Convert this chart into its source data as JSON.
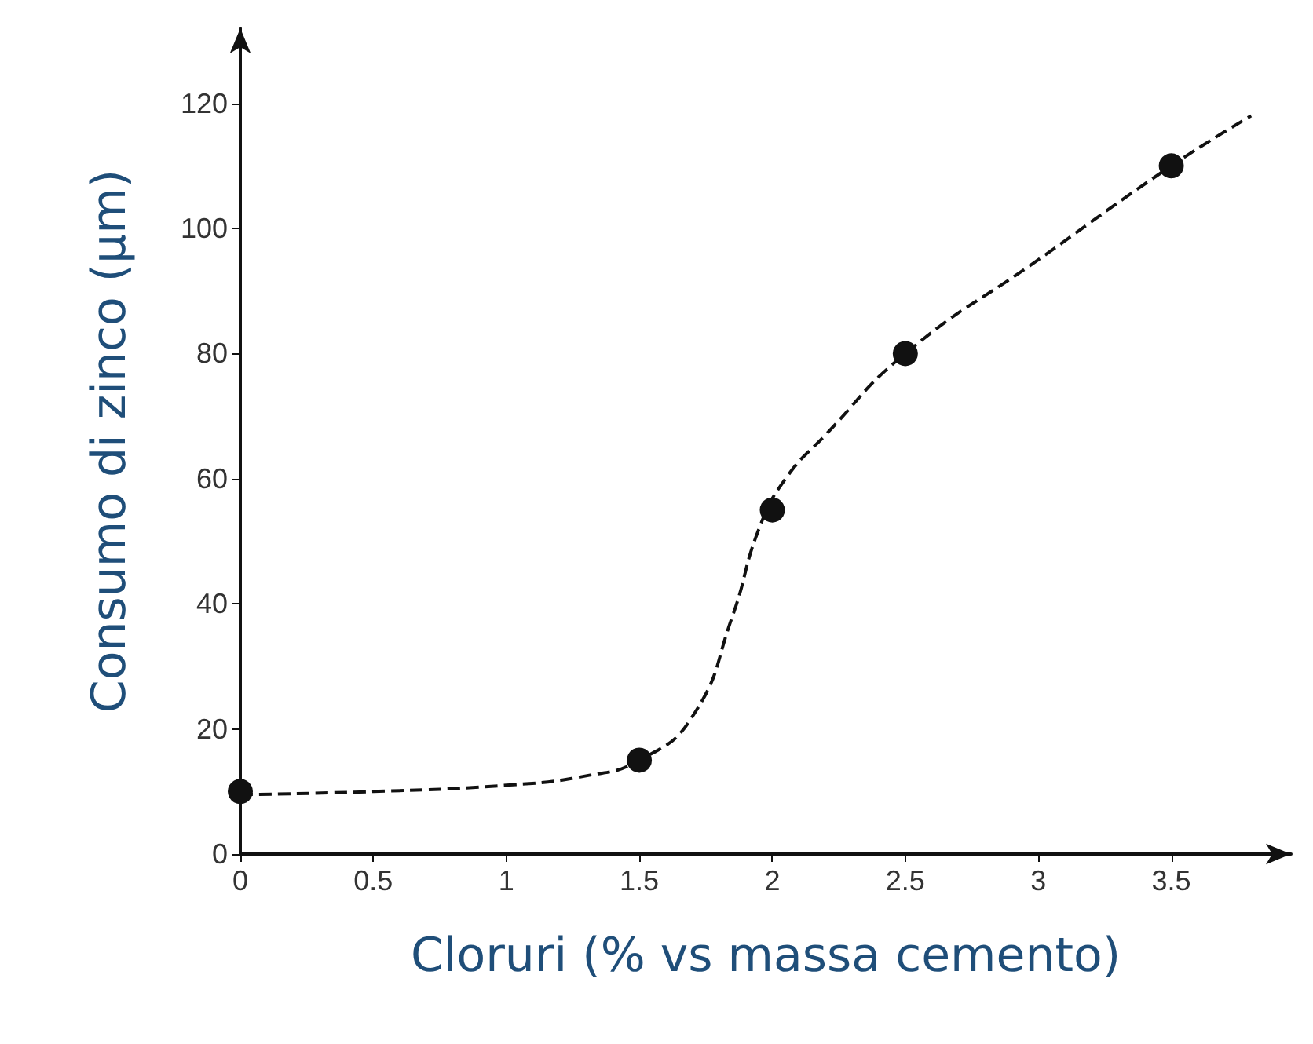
{
  "chart_data": {
    "type": "scatter",
    "xlabel": "Cloruri (% vs massa cemento)",
    "ylabel": "Consumo di zinco (µm)",
    "xlim": [
      0,
      3.95
    ],
    "ylim": [
      0,
      132
    ],
    "xticks": [
      0,
      0.5,
      1,
      1.5,
      2,
      2.5,
      3,
      3.5
    ],
    "yticks": [
      0,
      20,
      40,
      60,
      80,
      100,
      120
    ],
    "grid": false,
    "series": [
      {
        "type": "line",
        "color": "#111111",
        "marker": "none",
        "line_style": "dashed",
        "x": [
          0,
          0.5,
          1,
          1.3,
          1.5,
          1.7,
          1.85,
          1.95,
          2.05,
          2.2,
          2.5,
          3,
          3.5,
          3.8
        ],
        "values": [
          9.5,
          10,
          11,
          12.5,
          15,
          22,
          38,
          52,
          60,
          67,
          80,
          95,
          110,
          118
        ]
      },
      {
        "color": "#111111",
        "marker": "circle",
        "x": [
          0,
          1.5,
          2,
          2.5,
          3.5
        ],
        "values": [
          10,
          15,
          55,
          80,
          110
        ]
      }
    ]
  }
}
